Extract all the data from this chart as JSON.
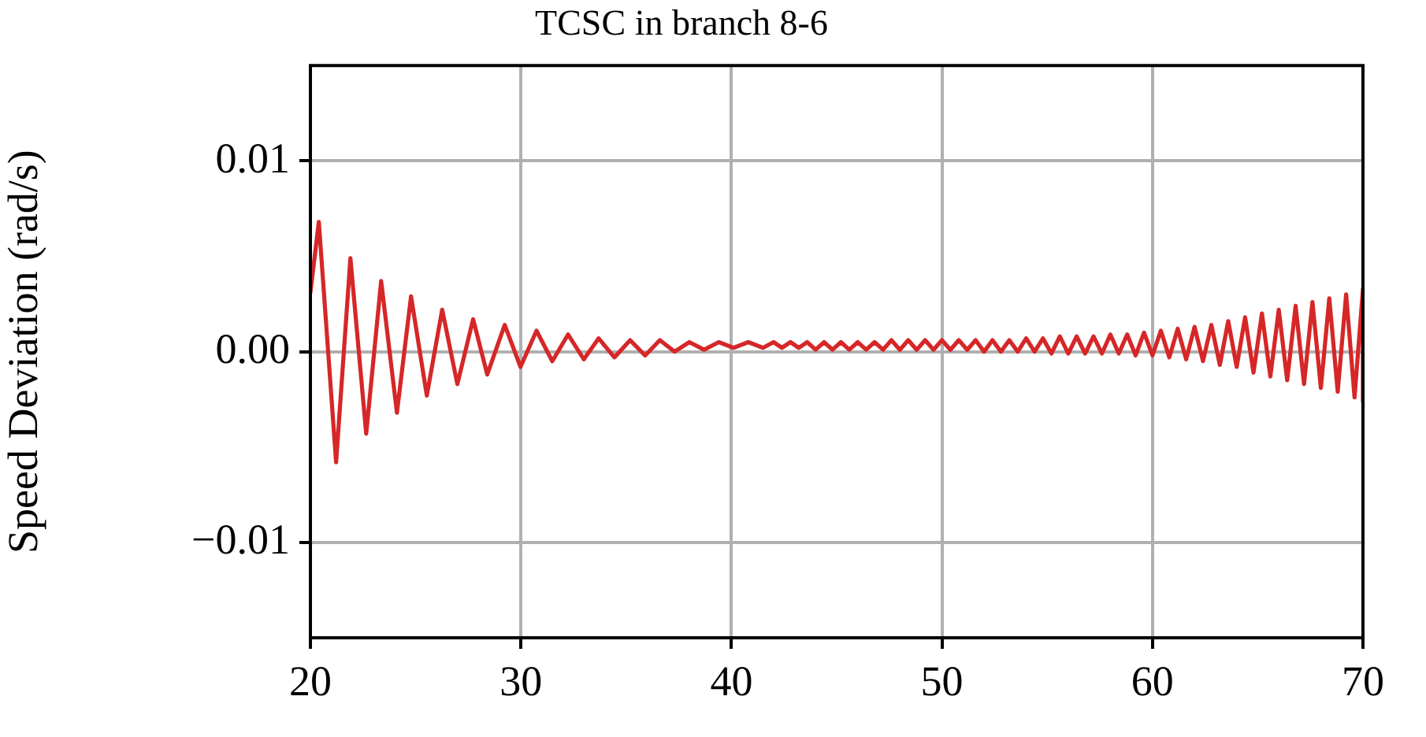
{
  "chart_data": {
    "type": "line",
    "title": "TCSC in branch 8-6",
    "ylabel": "Speed Deviation (rad/s)",
    "xlim": [
      20,
      70
    ],
    "xticks": [
      20,
      30,
      40,
      50,
      60,
      70
    ],
    "ylim": [
      -0.015,
      0.015
    ],
    "yticks": [
      {
        "value": -0.01,
        "label": "−0.01"
      },
      {
        "value": 0,
        "label": "0.00"
      },
      {
        "value": 0.01,
        "label": "0.01"
      }
    ],
    "grid": true,
    "legend": false,
    "marker": "none",
    "line_style": "solid",
    "series": [
      {
        "color": "#d62728",
        "x": [
          20.0,
          20.4,
          21.22,
          21.9,
          22.65,
          23.36,
          24.11,
          24.78,
          25.53,
          26.26,
          26.98,
          27.73,
          28.4,
          29.23,
          29.98,
          30.74,
          31.49,
          32.24,
          32.99,
          33.69,
          34.44,
          35.19,
          35.9,
          36.6,
          37.3,
          38.0,
          38.7,
          39.4,
          40.1,
          40.8,
          41.5,
          42.0,
          42.4,
          42.8,
          43.2,
          43.6,
          44.0,
          44.4,
          44.8,
          45.2,
          45.6,
          46.0,
          46.4,
          46.8,
          47.2,
          47.6,
          48.0,
          48.4,
          48.8,
          49.2,
          49.6,
          50.0,
          50.4,
          50.8,
          51.2,
          51.6,
          52.0,
          52.4,
          52.8,
          53.2,
          53.6,
          54.0,
          54.4,
          54.8,
          55.2,
          55.6,
          56.0,
          56.4,
          56.8,
          57.2,
          57.6,
          58.0,
          58.4,
          58.8,
          59.2,
          59.6,
          60.0,
          60.4,
          60.8,
          61.2,
          61.6,
          62.0,
          62.4,
          62.8,
          63.2,
          63.6,
          64.0,
          64.4,
          64.8,
          65.2,
          65.6,
          66.0,
          66.4,
          66.8,
          67.2,
          67.6,
          68.0,
          68.4,
          68.8,
          69.2,
          69.6,
          70.0,
          70.0
        ],
        "values": [
          0.0031,
          0.0068,
          -0.0058,
          0.0049,
          -0.0043,
          0.0037,
          -0.0032,
          0.0029,
          -0.0023,
          0.0022,
          -0.0017,
          0.0017,
          -0.0012,
          0.0014,
          -0.0008,
          0.0011,
          -0.0005,
          0.0009,
          -0.0004,
          0.0007,
          -0.0003,
          0.0006,
          -0.0002,
          0.0006,
          0.0,
          0.0005,
          0.0001,
          0.0005,
          0.0002,
          0.0005,
          0.0002,
          0.0005,
          0.0002,
          0.0005,
          0.0002,
          0.0005,
          0.0001,
          0.0005,
          0.0001,
          0.0005,
          0.0001,
          0.0005,
          0.0001,
          0.0005,
          0.0001,
          0.0006,
          0.0001,
          0.0006,
          0.0001,
          0.0006,
          0.0001,
          0.0006,
          0.0001,
          0.0006,
          0.0001,
          0.0006,
          0.0,
          0.0006,
          0.0,
          0.0006,
          0.0,
          0.0007,
          0.0,
          0.0007,
          -0.0001,
          0.0008,
          -0.0001,
          0.0008,
          -0.0001,
          0.0008,
          -0.0001,
          0.0009,
          -0.0001,
          0.0009,
          -0.0002,
          0.001,
          -0.0002,
          0.0011,
          -0.0003,
          0.0012,
          -0.0004,
          0.0013,
          -0.0005,
          0.0014,
          -0.0007,
          0.0016,
          -0.0008,
          0.0018,
          -0.0011,
          0.002,
          -0.0013,
          0.0022,
          -0.0015,
          0.0024,
          -0.0017,
          0.0026,
          -0.0019,
          0.0028,
          -0.0021,
          0.003,
          -0.0024,
          0.0033,
          -0.0026
        ]
      }
    ]
  }
}
